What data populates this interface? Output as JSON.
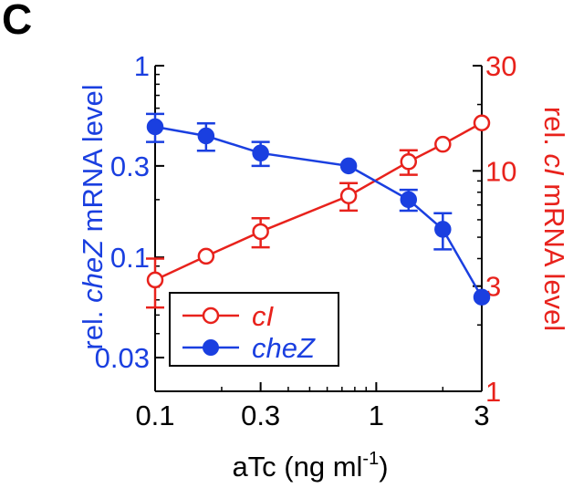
{
  "panel_label": "C",
  "colors": {
    "left_axis": "#1a3fe0",
    "right_axis": "#e8221c",
    "frame": "#000000"
  },
  "chart_data": {
    "type": "line",
    "x_scale": "log",
    "y_scale": "log",
    "xlim": [
      0.1,
      3
    ],
    "ylim_left": [
      0.02,
      1
    ],
    "ylim_right": [
      1,
      30
    ],
    "xlabel": {
      "prefix": "aTc (ng ml",
      "sup": "-1",
      "suffix": ")"
    },
    "ylabel_left": {
      "before": "rel. ",
      "gene": "cheZ",
      "after": " mRNA level"
    },
    "ylabel_right": {
      "before": "rel. ",
      "gene": "cI",
      "after": " mRNA level"
    },
    "x_ticks": [
      {
        "value": 0.1,
        "label": "0.1"
      },
      {
        "value": 0.3,
        "label": "0.3"
      },
      {
        "value": 1,
        "label": "1"
      },
      {
        "value": 3,
        "label": "3"
      }
    ],
    "y_left_ticks": [
      {
        "value": 1,
        "label": "1"
      },
      {
        "value": 0.3,
        "label": "0.3"
      },
      {
        "value": 0.1,
        "label": "0.1"
      },
      {
        "value": 0.03,
        "label": "0.03"
      }
    ],
    "y_right_ticks": [
      {
        "value": 30,
        "label": "30"
      },
      {
        "value": 10,
        "label": "10"
      },
      {
        "value": 3,
        "label": "3"
      },
      {
        "value": 1,
        "label": "1"
      }
    ],
    "grid": false,
    "legend_position": "bottom-left",
    "series": [
      {
        "name": "cI",
        "axis": "right",
        "marker": "open-circle",
        "color": "#e8221c",
        "x": [
          0.1,
          0.17,
          0.3,
          0.75,
          1.4,
          2.0,
          3.0
        ],
        "y": [
          3.2,
          4.1,
          5.3,
          7.7,
          11.0,
          13.2,
          16.5
        ],
        "err": [
          0.8,
          0,
          0.8,
          1.1,
          1.4,
          0,
          0
        ]
      },
      {
        "name": "cheZ",
        "axis": "left",
        "marker": "filled-circle",
        "color": "#1a3fe0",
        "x": [
          0.1,
          0.17,
          0.3,
          0.75,
          1.4,
          2.0,
          3.0
        ],
        "y": [
          0.48,
          0.43,
          0.35,
          0.3,
          0.2,
          0.14,
          0.062
        ],
        "err": [
          0.08,
          0.07,
          0.05,
          0,
          0.025,
          0.03,
          0
        ]
      }
    ]
  }
}
